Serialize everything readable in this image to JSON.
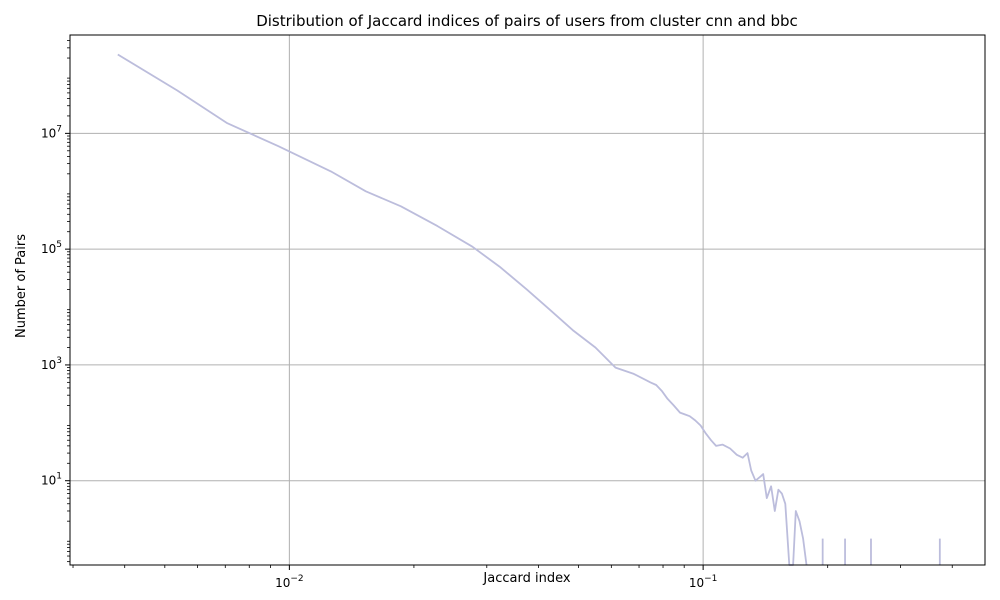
{
  "chart_data": {
    "type": "line",
    "title": "Distribution of Jaccard indices of pairs of users from cluster cnn and bbc",
    "xlabel": "Jaccard index",
    "ylabel": "Number of Pairs",
    "xscale": "log",
    "yscale": "log",
    "xlim": [
      0.00295,
      0.48
    ],
    "ylim": [
      0.35,
      500000000
    ],
    "grid": true,
    "series_color": "#bcbddc",
    "x_major_ticks": [
      {
        "value": 0.01,
        "base": "10",
        "exp": "−2"
      },
      {
        "value": 0.1,
        "base": "10",
        "exp": "−1"
      }
    ],
    "y_major_ticks": [
      {
        "value": 10,
        "base": "10",
        "exp": "1"
      },
      {
        "value": 1000,
        "base": "10",
        "exp": "3"
      },
      {
        "value": 100000,
        "base": "10",
        "exp": "5"
      },
      {
        "value": 10000000,
        "base": "10",
        "exp": "7"
      }
    ],
    "series": [
      {
        "x": [
          0.00385,
          0.00536,
          0.00708,
          0.00941,
          0.0126,
          0.0153,
          0.0186,
          0.0228,
          0.0277,
          0.0322,
          0.0375,
          0.0426,
          0.0484,
          0.0549,
          0.0614,
          0.068,
          0.0746,
          0.077,
          0.0796,
          0.082,
          0.0849,
          0.0879,
          0.0903,
          0.0928,
          0.0957,
          0.0986,
          0.1016,
          0.1045,
          0.1075,
          0.1114,
          0.1162,
          0.1206,
          0.1246,
          0.128,
          0.1307,
          0.1338,
          0.138,
          0.1397,
          0.1425,
          0.146,
          0.149,
          0.152,
          0.155,
          0.158,
          0.1615,
          0.165,
          0.1675,
          0.171,
          0.1744,
          0.1778
        ],
        "y": [
          230000000,
          55000000,
          15000000,
          6000000,
          2200000,
          1000000,
          550000,
          250000,
          110000,
          50000,
          20000,
          9000,
          4000,
          2000,
          900,
          700,
          500,
          450,
          350,
          260,
          200,
          150,
          140,
          130,
          110,
          90,
          65,
          50,
          40,
          42,
          36,
          28,
          25,
          30,
          15,
          10,
          12,
          13,
          5,
          8,
          3,
          7,
          6,
          4,
          0.35,
          0.35,
          3,
          2,
          1,
          0.35
        ]
      }
    ],
    "spikes": [
      {
        "x": 0.1945,
        "y": 1
      },
      {
        "x": 0.2203,
        "y": 1
      },
      {
        "x": 0.2545,
        "y": 1
      },
      {
        "x": 0.3733,
        "y": 1
      }
    ]
  }
}
